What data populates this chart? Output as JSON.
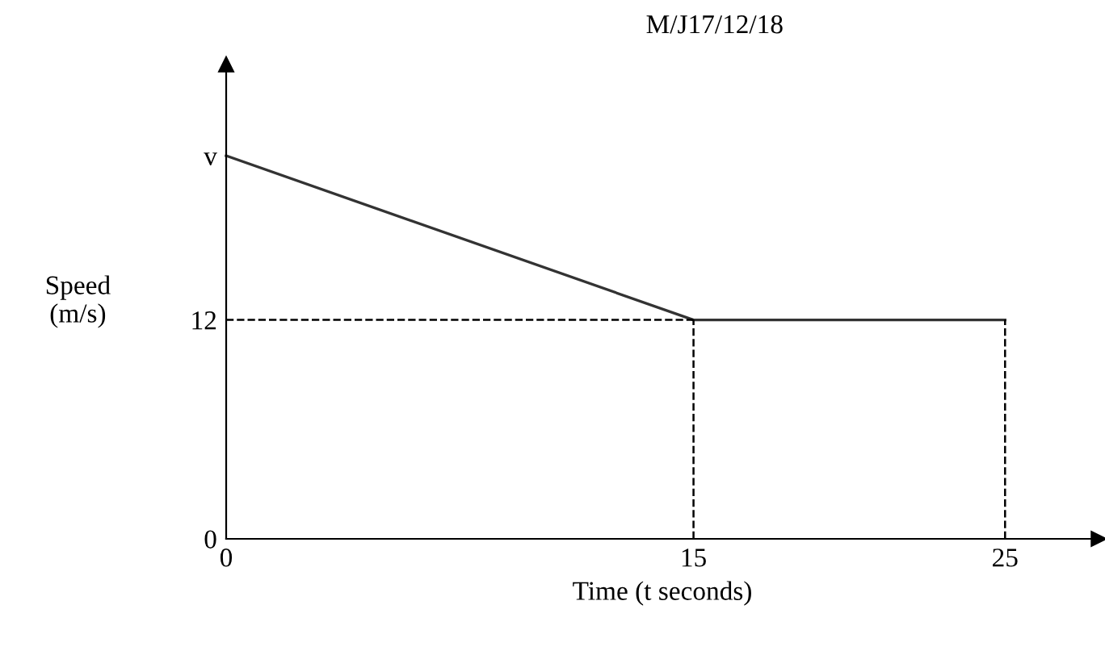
{
  "chart_data": {
    "type": "line",
    "title": "M/J17/12/18",
    "xlabel": "Time (t seconds)",
    "ylabel": "Speed\n(m/s)",
    "x": [
      0,
      15,
      25
    ],
    "series": [
      {
        "color": "#333333",
        "values": [
          21,
          12,
          12
        ]
      }
    ],
    "xlim": [
      0,
      28
    ],
    "ylim": [
      0,
      26
    ],
    "xticks": [
      0,
      15,
      25
    ],
    "yticks": [
      0,
      12,
      {
        "value": 21,
        "label": "v"
      }
    ],
    "ref_lines": [
      {
        "axis": "y",
        "value": 12,
        "line_style": "dashed",
        "color": "#000000"
      },
      {
        "axis": "x",
        "value": 15,
        "line_style": "dashed",
        "color": "#000000"
      },
      {
        "axis": "x",
        "value": 25,
        "line_style": "dashed",
        "color": "#000000"
      }
    ],
    "grid": false,
    "legend": false,
    "marker": "none",
    "line_style": "solid"
  }
}
